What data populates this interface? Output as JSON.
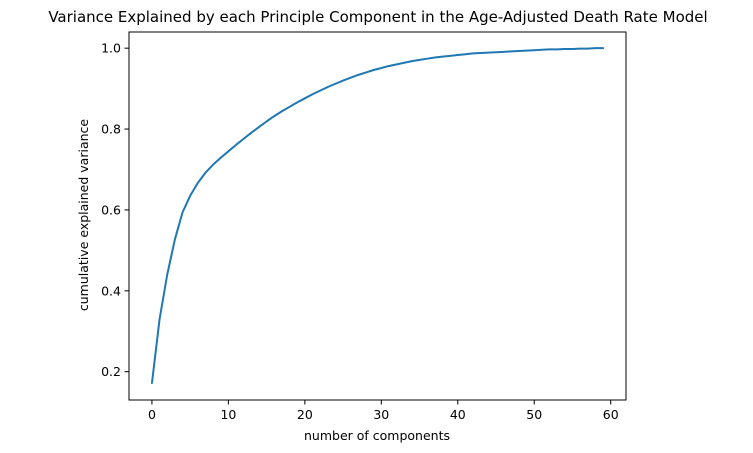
{
  "chart_data": {
    "type": "line",
    "title": "Variance Explained by each Principle Component in the Age-Adjusted Death Rate Model",
    "xlabel": "number of components",
    "ylabel": "cumulative explained variance",
    "xlim": [
      -3,
      62
    ],
    "ylim": [
      0.13,
      1.04
    ],
    "xticks": [
      0,
      10,
      20,
      30,
      40,
      50,
      60
    ],
    "yticks": [
      0.2,
      0.4,
      0.6,
      0.8,
      1.0
    ],
    "xtick_labels": [
      "0",
      "10",
      "20",
      "30",
      "40",
      "50",
      "60"
    ],
    "ytick_labels": [
      "0.2",
      "0.4",
      "0.6",
      "0.8",
      "1.0"
    ],
    "grid": false,
    "series": [
      {
        "color": "#1f77b4",
        "x": [
          0,
          1,
          2,
          3,
          4,
          5,
          6,
          7,
          8,
          9,
          10,
          11,
          12,
          13,
          14,
          15,
          16,
          17,
          18,
          19,
          20,
          21,
          22,
          23,
          24,
          25,
          26,
          27,
          28,
          29,
          30,
          31,
          32,
          33,
          34,
          35,
          36,
          37,
          38,
          39,
          40,
          41,
          42,
          43,
          44,
          45,
          46,
          47,
          48,
          49,
          50,
          51,
          52,
          53,
          54,
          55,
          56,
          57,
          58,
          59
        ],
        "y": [
          0.172,
          0.33,
          0.44,
          0.527,
          0.594,
          0.635,
          0.667,
          0.692,
          0.712,
          0.729,
          0.745,
          0.761,
          0.776,
          0.791,
          0.805,
          0.819,
          0.832,
          0.844,
          0.855,
          0.866,
          0.876,
          0.886,
          0.895,
          0.904,
          0.912,
          0.92,
          0.927,
          0.934,
          0.94,
          0.946,
          0.951,
          0.956,
          0.96,
          0.964,
          0.968,
          0.971,
          0.974,
          0.977,
          0.979,
          0.981,
          0.983,
          0.985,
          0.987,
          0.988,
          0.989,
          0.99,
          0.991,
          0.992,
          0.993,
          0.994,
          0.995,
          0.996,
          0.997,
          0.997,
          0.998,
          0.998,
          0.999,
          0.999,
          1.0,
          1.0
        ]
      }
    ]
  }
}
